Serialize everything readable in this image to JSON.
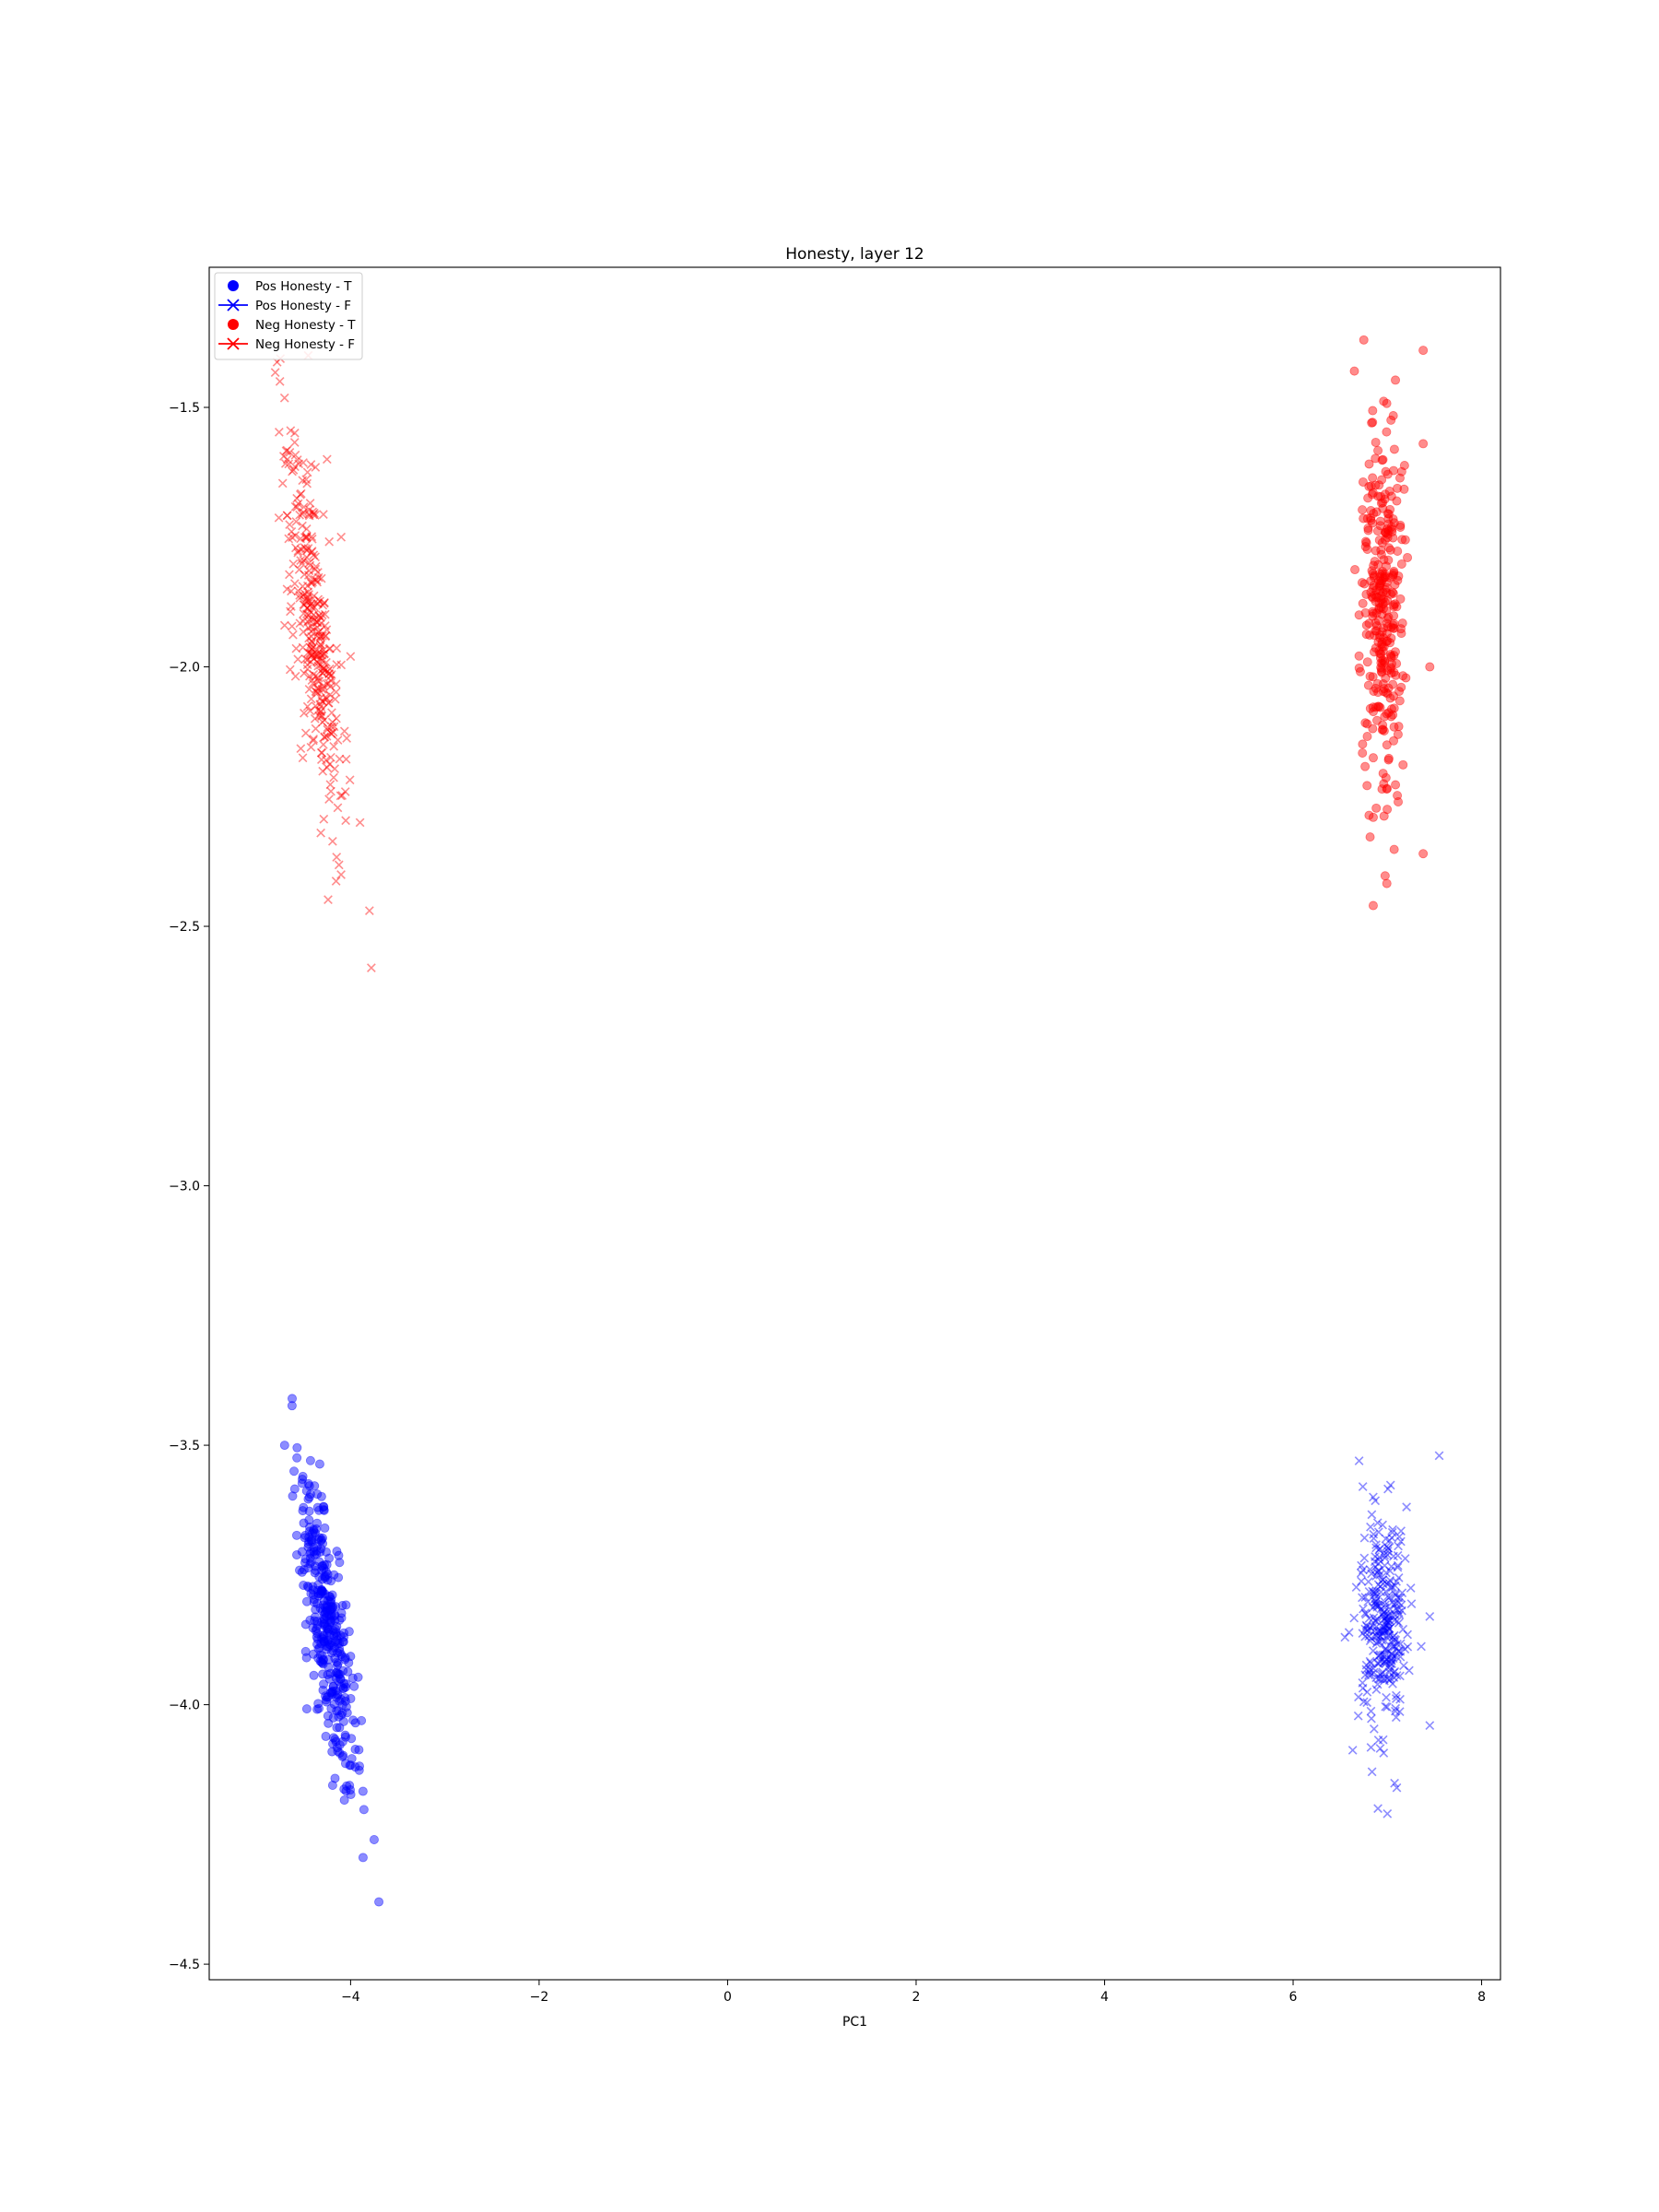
{
  "chart_data": {
    "type": "scatter",
    "title": "Honesty, layer 12",
    "xlabel": "PC1",
    "ylabel": "",
    "xlim": [
      -5.5,
      8.2
    ],
    "ylim": [
      -4.53,
      -1.23
    ],
    "xticks": [
      -4,
      -2,
      0,
      2,
      4,
      6,
      8
    ],
    "xtick_labels": [
      "−4",
      "−2",
      "0",
      "2",
      "4",
      "6",
      "8"
    ],
    "yticks": [
      -4.5,
      -4.0,
      -3.5,
      -3.0,
      -2.5,
      -2.0,
      -1.5
    ],
    "ytick_labels": [
      "−4.5",
      "−4.0",
      "−3.5",
      "−3.0",
      "−2.5",
      "−2.0",
      "−1.5"
    ],
    "grid": false,
    "legend_position": "upper-left",
    "series": [
      {
        "name": "Pos Honesty - T",
        "marker": "circle",
        "color": "#0000ff",
        "cluster": {
          "x_mean": -4.25,
          "y_mean": -3.85,
          "n": 360,
          "x_range": [
            -4.75,
            -3.65
          ],
          "y_range": [
            -4.38,
            -3.41
          ]
        },
        "points": [
          [
            -4.7,
            -3.5
          ],
          [
            -4.62,
            -3.41
          ],
          [
            -4.6,
            -3.55
          ],
          [
            -4.5,
            -3.62
          ],
          [
            -4.35,
            -3.78
          ],
          [
            -4.2,
            -3.9
          ],
          [
            -4.1,
            -4.02
          ],
          [
            -3.95,
            -4.12
          ],
          [
            -3.75,
            -4.26
          ],
          [
            -3.7,
            -4.38
          ]
        ]
      },
      {
        "name": "Pos Honesty - F",
        "marker": "x",
        "color": "#0000ff",
        "cluster": {
          "x_mean": 6.95,
          "y_mean": -3.84,
          "n": 300,
          "x_range": [
            6.55,
            7.55
          ],
          "y_range": [
            -4.21,
            -3.52
          ]
        },
        "points": [
          [
            6.7,
            -3.53
          ],
          [
            7.55,
            -3.52
          ],
          [
            6.55,
            -3.87
          ],
          [
            7.45,
            -3.83
          ],
          [
            7.45,
            -4.04
          ],
          [
            7.1,
            -4.16
          ],
          [
            6.9,
            -4.2
          ],
          [
            7.0,
            -4.21
          ],
          [
            6.85,
            -3.6
          ],
          [
            7.0,
            -3.95
          ]
        ]
      },
      {
        "name": "Neg Honesty - T",
        "marker": "circle",
        "color": "#ff0000",
        "cluster": {
          "x_mean": 6.95,
          "y_mean": -1.9,
          "n": 320,
          "x_range": [
            6.55,
            7.45
          ],
          "y_range": [
            -2.46,
            -1.37
          ]
        },
        "points": [
          [
            6.75,
            -1.37
          ],
          [
            7.38,
            -1.39
          ],
          [
            6.65,
            -1.43
          ],
          [
            7.38,
            -1.57
          ],
          [
            7.45,
            -2.0
          ],
          [
            7.38,
            -2.36
          ],
          [
            6.85,
            -2.46
          ],
          [
            6.85,
            -2.29
          ],
          [
            6.7,
            -1.9
          ],
          [
            7.0,
            -1.95
          ]
        ]
      },
      {
        "name": "Neg Honesty - F",
        "marker": "x",
        "color": "#ff0000",
        "cluster": {
          "x_mean": -4.4,
          "y_mean": -1.92,
          "n": 340,
          "x_range": [
            -4.8,
            -3.78
          ],
          "y_range": [
            -2.58,
            -1.4
          ]
        },
        "points": [
          [
            -4.75,
            -1.45
          ],
          [
            -4.45,
            -1.4
          ],
          [
            -4.7,
            -1.92
          ],
          [
            -4.25,
            -1.6
          ],
          [
            -4.1,
            -1.75
          ],
          [
            -4.0,
            -1.98
          ],
          [
            -3.9,
            -2.3
          ],
          [
            -3.8,
            -2.47
          ],
          [
            -3.78,
            -2.58
          ],
          [
            -4.3,
            -1.9
          ]
        ]
      }
    ]
  }
}
